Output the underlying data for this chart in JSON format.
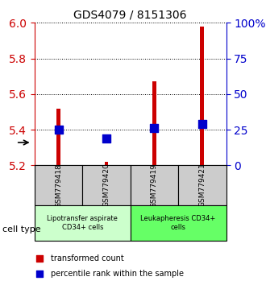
{
  "title": "GDS4079 / 8151306",
  "samples": [
    "GSM779418",
    "GSM779420",
    "GSM779419",
    "GSM779421"
  ],
  "red_values": [
    5.52,
    5.22,
    5.67,
    5.98
  ],
  "blue_values": [
    5.4,
    5.35,
    5.41,
    5.43
  ],
  "ylim": [
    5.2,
    6.0
  ],
  "yticks_left": [
    5.2,
    5.4,
    5.6,
    5.8,
    6.0
  ],
  "yticks_right": [
    0,
    25,
    50,
    75,
    100
  ],
  "ytick_right_labels": [
    "0",
    "25",
    "50",
    "75",
    "100%"
  ],
  "groups": [
    {
      "label": "Lipotransfer aspirate\nCD34+ cells",
      "color": "#ccffcc",
      "start": 0,
      "end": 2
    },
    {
      "label": "Leukapheresis CD34+\ncells",
      "color": "#66ff66",
      "start": 2,
      "end": 4
    }
  ],
  "bar_color": "#cc0000",
  "dot_color": "#0000cc",
  "bar_width": 0.08,
  "dot_size": 50,
  "cell_type_label": "cell type",
  "legend1": "transformed count",
  "legend2": "percentile rank within the sample",
  "grid_color": "black",
  "left_tick_color": "#cc0000",
  "right_tick_color": "#0000cc",
  "sample_box_color": "#cccccc"
}
